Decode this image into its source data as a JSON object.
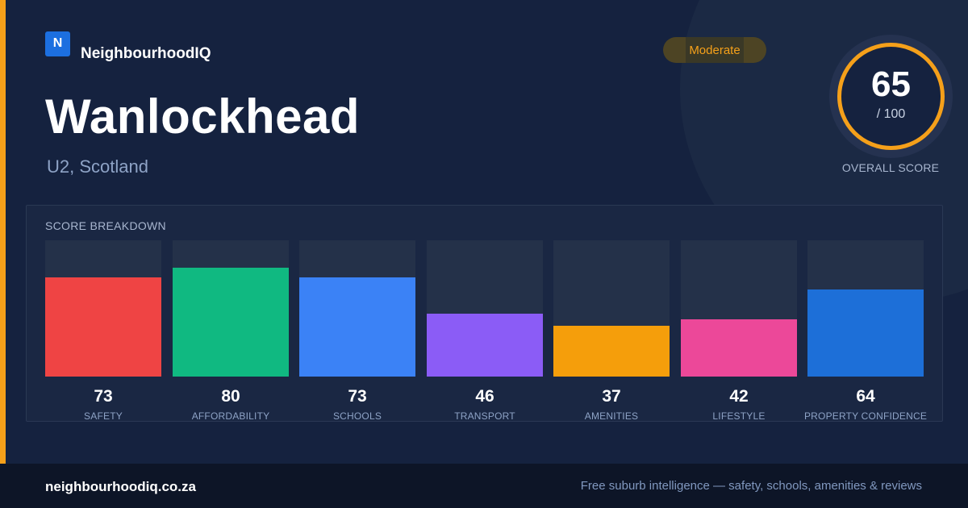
{
  "brand": {
    "logo_letter": "N",
    "name": "NeighbourhoodIQ"
  },
  "place": {
    "name": "Wanlockhead",
    "region": "U2, Scotland"
  },
  "rating_badge": "Moderate",
  "overall": {
    "score": "65",
    "max_label": "/ 100",
    "caption": "OVERALL SCORE",
    "score_fraction": 0.65
  },
  "breakdown": {
    "title": "SCORE BREAKDOWN",
    "items": [
      {
        "label": "SAFETY",
        "value": 73,
        "color": "#ef4444"
      },
      {
        "label": "AFFORDABILITY",
        "value": 80,
        "color": "#10b981"
      },
      {
        "label": "SCHOOLS",
        "value": 73,
        "color": "#3b82f6"
      },
      {
        "label": "TRANSPORT",
        "value": 46,
        "color": "#8b5cf6"
      },
      {
        "label": "AMENITIES",
        "value": 37,
        "color": "#f59e0b"
      },
      {
        "label": "LIFESTYLE",
        "value": 42,
        "color": "#ec4899"
      },
      {
        "label": "PROPERTY CONFIDENCE",
        "value": 64,
        "color": "#1d6fd8"
      }
    ]
  },
  "footer": {
    "url": "neighbourhoodiq.co.za",
    "tagline": "Free suburb intelligence — safety, schools, amenities & reviews"
  },
  "colors": {
    "accent": "#f5a01a",
    "brand_blue": "#1c6fe0",
    "background": "#15223f"
  }
}
